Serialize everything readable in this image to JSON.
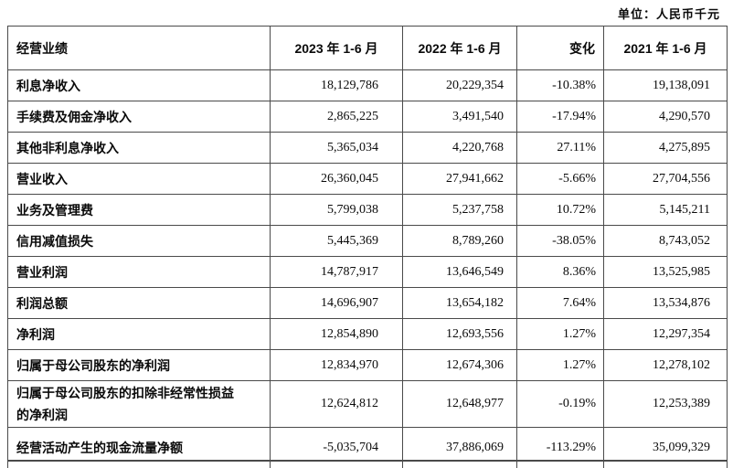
{
  "meta": {
    "unit_label": "单位：人民币千元"
  },
  "table": {
    "headers": [
      "经营业绩",
      "2023 年 1-6 月",
      "2022 年 1-6 月",
      "变化",
      "2021 年 1-6 月"
    ],
    "rows": [
      {
        "label": "利息净收入",
        "y2023": "18,129,786",
        "y2022": "20,229,354",
        "change": "-10.38%",
        "y2021": "19,138,091"
      },
      {
        "label": "手续费及佣金净收入",
        "y2023": "2,865,225",
        "y2022": "3,491,540",
        "change": "-17.94%",
        "y2021": "4,290,570"
      },
      {
        "label": "其他非利息净收入",
        "y2023": "5,365,034",
        "y2022": "4,220,768",
        "change": "27.11%",
        "y2021": "4,275,895"
      },
      {
        "label": "营业收入",
        "y2023": "26,360,045",
        "y2022": "27,941,662",
        "change": "-5.66%",
        "y2021": "27,704,556"
      },
      {
        "label": "业务及管理费",
        "y2023": "5,799,038",
        "y2022": "5,237,758",
        "change": "10.72%",
        "y2021": "5,145,211"
      },
      {
        "label": "信用减值损失",
        "y2023": "5,445,369",
        "y2022": "8,789,260",
        "change": "-38.05%",
        "y2021": "8,743,052"
      },
      {
        "label": "营业利润",
        "y2023": "14,787,917",
        "y2022": "13,646,549",
        "change": "8.36%",
        "y2021": "13,525,985"
      },
      {
        "label": "利润总额",
        "y2023": "14,696,907",
        "y2022": "13,654,182",
        "change": "7.64%",
        "y2021": "13,534,876"
      },
      {
        "label": "净利润",
        "y2023": "12,854,890",
        "y2022": "12,693,556",
        "change": "1.27%",
        "y2021": "12,297,354"
      },
      {
        "label": "归属于母公司股东的净利润",
        "y2023": "12,834,970",
        "y2022": "12,674,306",
        "change": "1.27%",
        "y2021": "12,278,102"
      },
      {
        "label": "归属于母公司股东的扣除非经常性损益\n的净利润",
        "y2023": "12,624,812",
        "y2022": "12,648,977",
        "change": "-0.19%",
        "y2021": "12,253,389"
      },
      {
        "label": "经营活动产生的现金流量净额",
        "y2023": "-5,035,704",
        "y2022": "37,886,069",
        "change": "-113.29%",
        "y2021": "35,099,329"
      }
    ]
  }
}
